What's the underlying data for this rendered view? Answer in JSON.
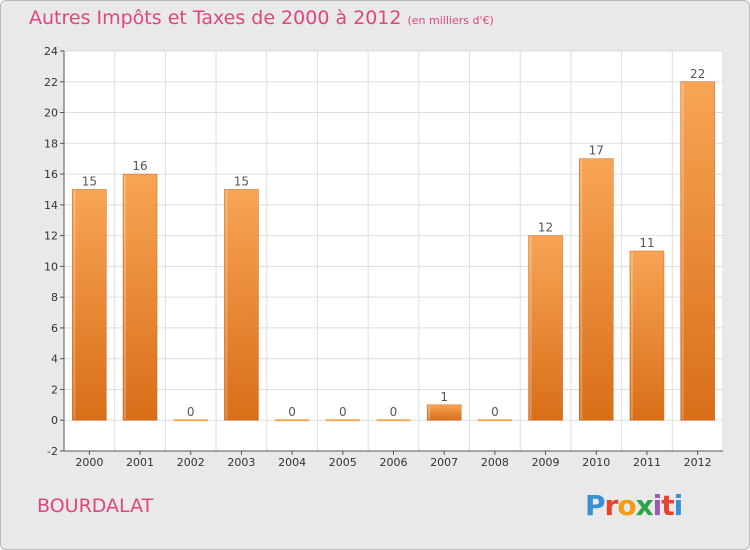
{
  "title": "Autres Impôts et Taxes de 2000 à 2012",
  "subtitle": "(en milliers d'€)",
  "location": "BOURDALAT",
  "logo_text": "Proxiti",
  "colors": {
    "bar_light": "#f7a555",
    "bar_dark": "#d96e18",
    "title": "#e0457b",
    "background": "#e9e9e9"
  },
  "chart_data": {
    "type": "bar",
    "categories": [
      "2000",
      "2001",
      "2002",
      "2003",
      "2004",
      "2005",
      "2006",
      "2007",
      "2008",
      "2009",
      "2010",
      "2011",
      "2012"
    ],
    "values": [
      15,
      16,
      0,
      15,
      0,
      0,
      0,
      1,
      0,
      12,
      17,
      11,
      22
    ],
    "title": "Autres Impôts et Taxes de 2000 à 2012",
    "subtitle": "(en milliers d'€)",
    "ylim": [
      -2,
      24
    ],
    "yticks": [
      -2,
      0,
      2,
      4,
      6,
      8,
      10,
      12,
      14,
      16,
      18,
      20,
      22,
      24
    ],
    "grid": true,
    "data_labels": true
  }
}
